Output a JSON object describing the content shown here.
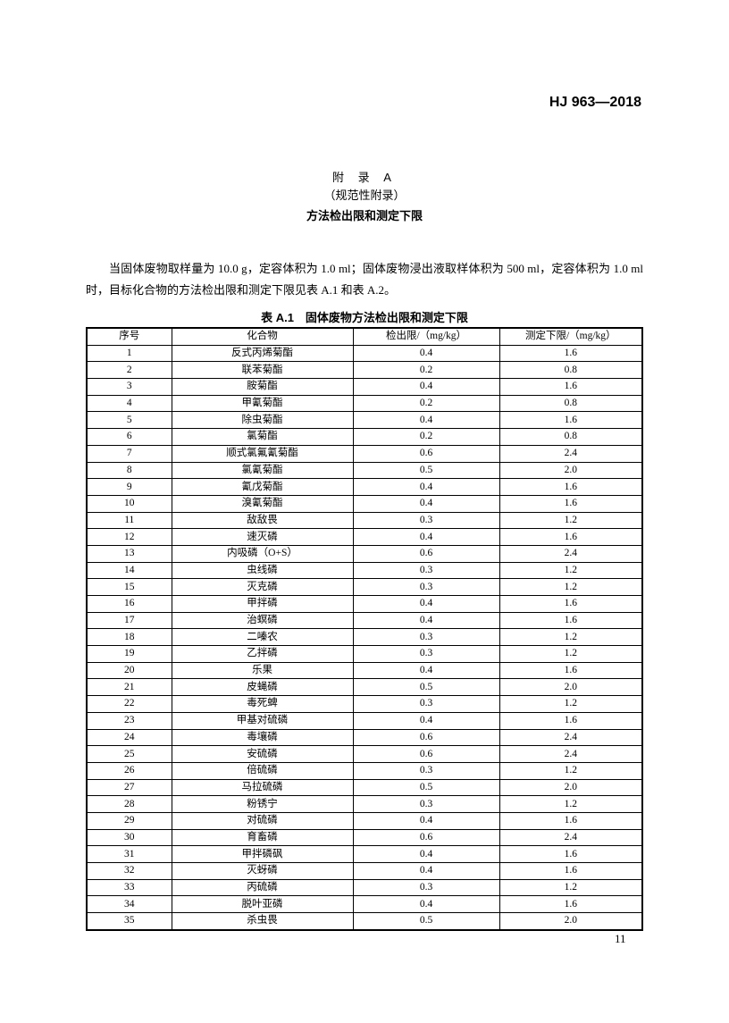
{
  "header": {
    "standard_no": "HJ 963—2018"
  },
  "title": {
    "appendix": "附 录 A",
    "type": "（规范性附录）",
    "heading": "方法检出限和测定下限"
  },
  "paragraph": "当固体废物取样量为 10.0 g，定容体积为 1.0 ml；固体废物浸出液取样体积为 500 ml，定容体积为 1.0 ml 时，目标化合物的方法检出限和测定下限见表 A.1 和表 A.2。",
  "table": {
    "caption": "表 A.1　固体废物方法检出限和测定下限",
    "columns": [
      "序号",
      "化合物",
      "检出限/（mg/kg）",
      "测定下限/（mg/kg）"
    ],
    "rows": [
      [
        "1",
        "反式丙烯菊酯",
        "0.4",
        "1.6"
      ],
      [
        "2",
        "联苯菊酯",
        "0.2",
        "0.8"
      ],
      [
        "3",
        "胺菊酯",
        "0.4",
        "1.6"
      ],
      [
        "4",
        "甲氰菊酯",
        "0.2",
        "0.8"
      ],
      [
        "5",
        "除虫菊酯",
        "0.4",
        "1.6"
      ],
      [
        "6",
        "氯菊酯",
        "0.2",
        "0.8"
      ],
      [
        "7",
        "顺式氯氟氰菊酯",
        "0.6",
        "2.4"
      ],
      [
        "8",
        "氯氰菊酯",
        "0.5",
        "2.0"
      ],
      [
        "9",
        "氰戊菊酯",
        "0.4",
        "1.6"
      ],
      [
        "10",
        "溴氰菊酯",
        "0.4",
        "1.6"
      ],
      [
        "11",
        "敌敌畏",
        "0.3",
        "1.2"
      ],
      [
        "12",
        "速灭磷",
        "0.4",
        "1.6"
      ],
      [
        "13",
        "内吸磷（O+S）",
        "0.6",
        "2.4"
      ],
      [
        "14",
        "虫线磷",
        "0.3",
        "1.2"
      ],
      [
        "15",
        "灭克磷",
        "0.3",
        "1.2"
      ],
      [
        "16",
        "甲拌磷",
        "0.4",
        "1.6"
      ],
      [
        "17",
        "治螟磷",
        "0.4",
        "1.6"
      ],
      [
        "18",
        "二嗪农",
        "0.3",
        "1.2"
      ],
      [
        "19",
        "乙拌磷",
        "0.3",
        "1.2"
      ],
      [
        "20",
        "乐果",
        "0.4",
        "1.6"
      ],
      [
        "21",
        "皮蝇磷",
        "0.5",
        "2.0"
      ],
      [
        "22",
        "毒死蜱",
        "0.3",
        "1.2"
      ],
      [
        "23",
        "甲基对硫磷",
        "0.4",
        "1.6"
      ],
      [
        "24",
        "毒壤磷",
        "0.6",
        "2.4"
      ],
      [
        "25",
        "安硫磷",
        "0.6",
        "2.4"
      ],
      [
        "26",
        "倍硫磷",
        "0.3",
        "1.2"
      ],
      [
        "27",
        "马拉硫磷",
        "0.5",
        "2.0"
      ],
      [
        "28",
        "粉锈宁",
        "0.3",
        "1.2"
      ],
      [
        "29",
        "对硫磷",
        "0.4",
        "1.6"
      ],
      [
        "30",
        "育畜磷",
        "0.6",
        "2.4"
      ],
      [
        "31",
        "甲拌磷砜",
        "0.4",
        "1.6"
      ],
      [
        "32",
        "灭蚜磷",
        "0.4",
        "1.6"
      ],
      [
        "33",
        "丙硫磷",
        "0.3",
        "1.2"
      ],
      [
        "34",
        "脱叶亚磷",
        "0.4",
        "1.6"
      ],
      [
        "35",
        "杀虫畏",
        "0.5",
        "2.0"
      ]
    ]
  },
  "footer": {
    "page_number": "11"
  }
}
